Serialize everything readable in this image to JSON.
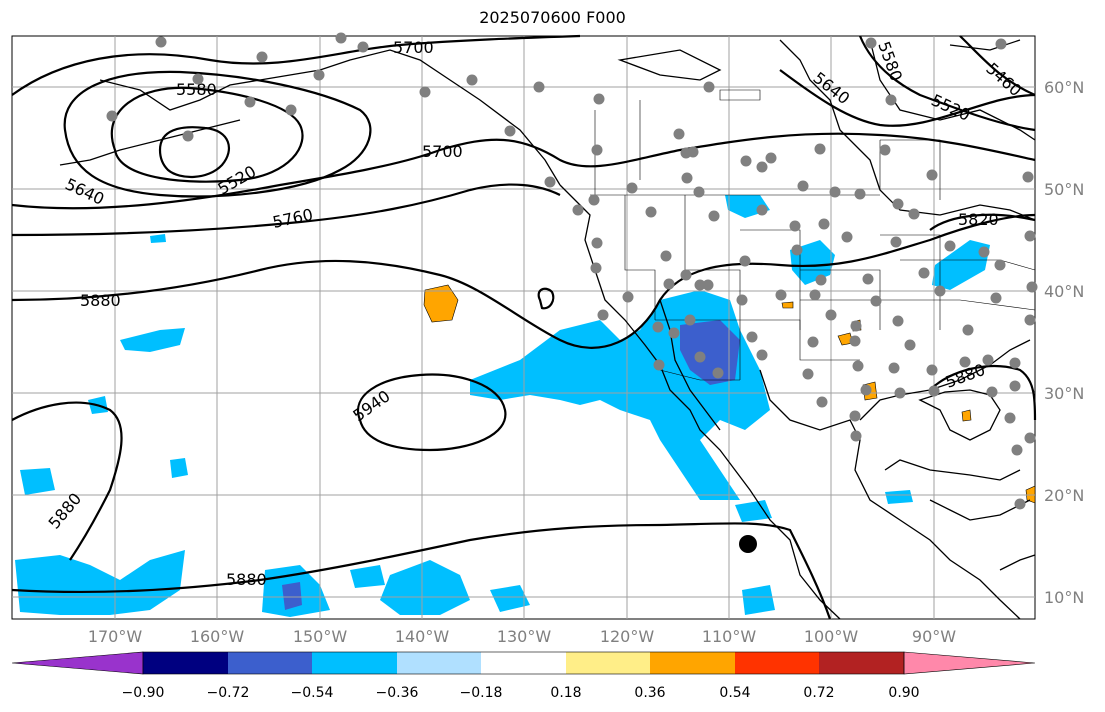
{
  "title": "2025070600 F000",
  "lon_labels": [
    "170°W",
    "160°W",
    "150°W",
    "140°W",
    "130°W",
    "120°W",
    "110°W",
    "100°W",
    "90°W"
  ],
  "lat_labels": [
    "60°N",
    "50°N",
    "40°N",
    "30°N",
    "20°N",
    "10°N"
  ],
  "colorbar": {
    "colors": [
      "#9933cc",
      "#000080",
      "#3c5fcd",
      "#00bfff",
      "#b0e0ff",
      "#ffffff",
      "#ffee88",
      "#ffa500",
      "#ff3300",
      "#b22222",
      "#ff88aa"
    ],
    "tick_labels": [
      "−0.90",
      "−0.72",
      "−0.54",
      "−0.36",
      "−0.18",
      "0.18",
      "0.36",
      "0.54",
      "0.72",
      "0.90"
    ]
  },
  "contour_labels": [
    "5700",
    "5580",
    "5520",
    "5640",
    "5700",
    "5760",
    "5880",
    "5940",
    "5880",
    "5880",
    "5640",
    "5580",
    "5520",
    "5460",
    "5820",
    "5880"
  ],
  "colors": {
    "contour": "#000000",
    "station": "#808080",
    "grid": "#a0a0a0",
    "neg_shade": "#00bfff",
    "pos_shade": "#ffa500"
  }
}
